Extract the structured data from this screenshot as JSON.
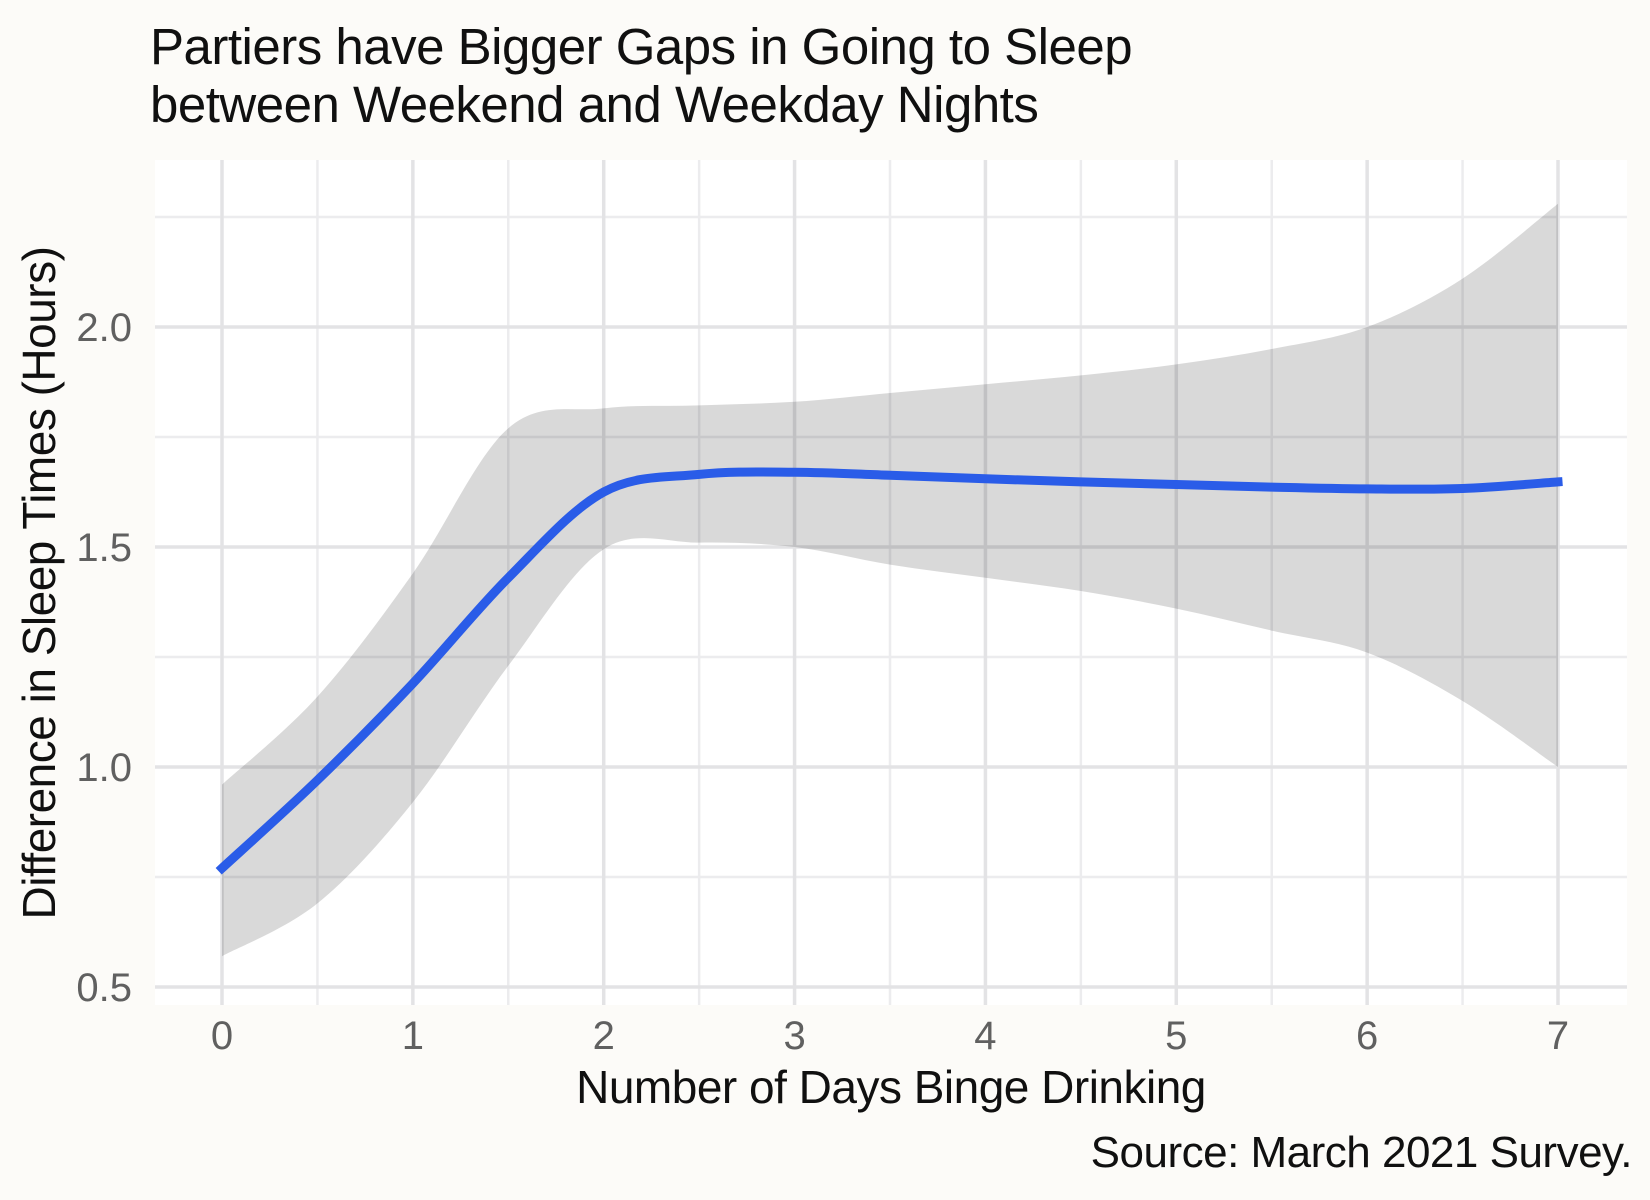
{
  "title": {
    "line1": "Partiers have Bigger Gaps in Going to Sleep",
    "line2": "between Weekend and Weekday Nights"
  },
  "source": "Source: March 2021 Survey.",
  "chart_data": {
    "type": "line",
    "title": "Partiers have Bigger Gaps in Going to Sleep between Weekend and Weekday Nights",
    "xlabel": "Number of Days Binge Drinking",
    "ylabel": "Difference in Sleep Times (Hours)",
    "x": [
      0,
      0.5,
      1,
      1.5,
      2,
      2.5,
      3,
      3.5,
      4,
      4.5,
      5,
      5.5,
      6,
      6.5,
      7
    ],
    "series": [
      {
        "name": "trend",
        "values": [
          0.77,
          0.97,
          1.19,
          1.43,
          1.625,
          1.665,
          1.67,
          1.663,
          1.655,
          1.648,
          1.642,
          1.636,
          1.632,
          1.633,
          1.648
        ]
      }
    ],
    "band": {
      "upper": [
        0.96,
        1.16,
        1.44,
        1.77,
        1.815,
        1.822,
        1.83,
        1.85,
        1.87,
        1.89,
        1.915,
        1.95,
        2.0,
        2.11,
        2.28
      ],
      "lower": [
        0.57,
        0.69,
        0.92,
        1.23,
        1.495,
        1.51,
        1.5,
        1.46,
        1.43,
        1.4,
        1.36,
        1.31,
        1.26,
        1.15,
        1.0
      ]
    },
    "xlim": [
      0,
      7
    ],
    "ylim": [
      0.46,
      2.38
    ],
    "x_ticks": [
      0,
      1,
      2,
      3,
      4,
      5,
      6,
      7
    ],
    "x_tick_labels": [
      "0",
      "1",
      "2",
      "3",
      "4",
      "5",
      "6",
      "7"
    ],
    "x_minor": [
      0.5,
      1.5,
      2.5,
      3.5,
      4.5,
      5.5,
      6.5
    ],
    "y_ticks": [
      0.5,
      1.0,
      1.5,
      2.0
    ],
    "y_tick_labels": [
      "0.5",
      "1.0",
      "1.5",
      "2.0"
    ],
    "y_minor": [
      0.75,
      1.25,
      1.75,
      2.25
    ],
    "grid": "on",
    "legend": "none",
    "colors": {
      "line": "#2A5CE8",
      "band": "#D9D9D9",
      "grid_major": "#E3E3E5",
      "grid_minor": "#ECECEE",
      "tick_label": "#606060",
      "text": "#101010",
      "background": "#FCFBF8",
      "panel": "#FFFFFF"
    }
  }
}
